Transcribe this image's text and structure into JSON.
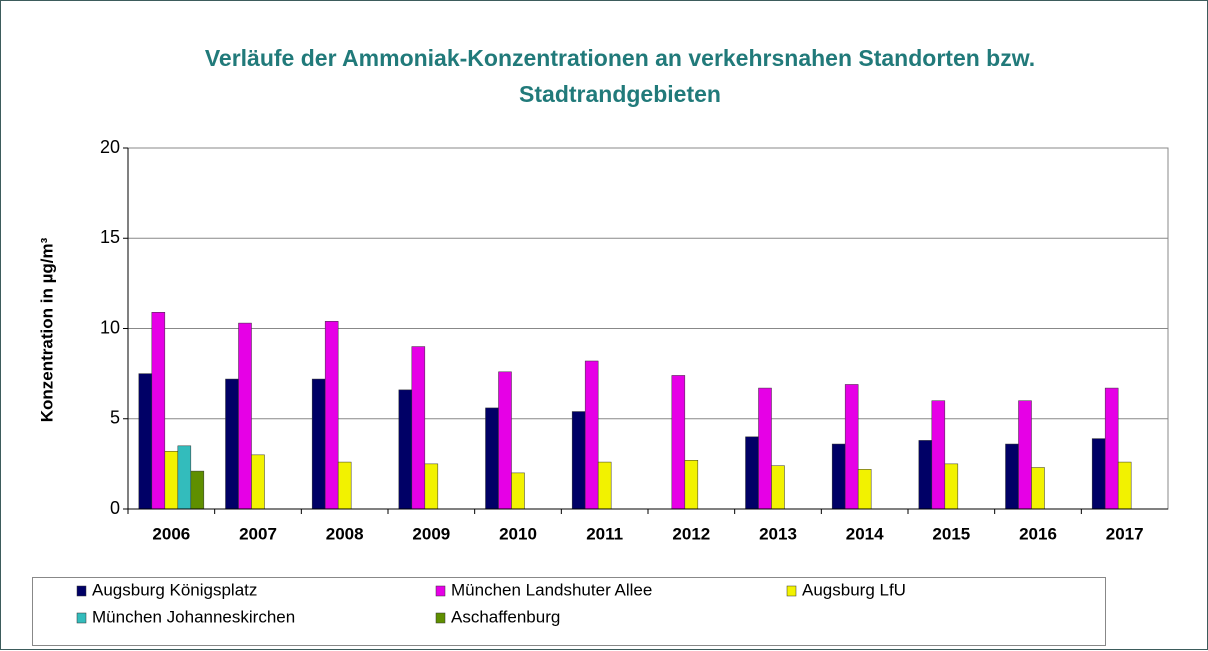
{
  "chart_data": {
    "type": "bar",
    "title": [
      "Verläufe der Ammoniak-Konzentrationen an verkehrsnahen Standorten bzw.",
      "Stadtrandgebieten"
    ],
    "y_label": "Konzentration in µg/m³",
    "categories": [
      "2006",
      "2007",
      "2008",
      "2009",
      "2010",
      "2011",
      "2012",
      "2013",
      "2014",
      "2015",
      "2016",
      "2017"
    ],
    "series": [
      {
        "name": "Augsburg Königsplatz",
        "color": "#000066",
        "values": [
          7.5,
          7.2,
          7.2,
          6.6,
          5.6,
          5.4,
          null,
          4.0,
          3.6,
          3.8,
          3.6,
          3.9
        ]
      },
      {
        "name": "München Landshuter Allee",
        "color": "#e600e6",
        "values": [
          10.9,
          10.3,
          10.4,
          9.0,
          7.6,
          8.2,
          7.4,
          6.7,
          6.9,
          6.0,
          6.0,
          6.7
        ]
      },
      {
        "name": "Augsburg LfU",
        "color": "#f2f200",
        "values": [
          3.2,
          3.0,
          2.6,
          2.5,
          2.0,
          2.6,
          2.7,
          2.4,
          2.2,
          2.5,
          2.3,
          2.6
        ]
      },
      {
        "name": "München Johanneskirchen",
        "color": "#33bcbc",
        "values": [
          3.5,
          null,
          null,
          null,
          null,
          null,
          null,
          null,
          null,
          null,
          null,
          null
        ]
      },
      {
        "name": "Aschaffenburg",
        "color": "#5f8f00",
        "values": [
          2.1,
          null,
          null,
          null,
          null,
          null,
          null,
          null,
          null,
          null,
          null,
          null
        ]
      }
    ],
    "ylim": [
      0,
      20
    ],
    "yticks": [
      0,
      5,
      10,
      15,
      20
    ],
    "grid": true,
    "legend": "bottom"
  }
}
